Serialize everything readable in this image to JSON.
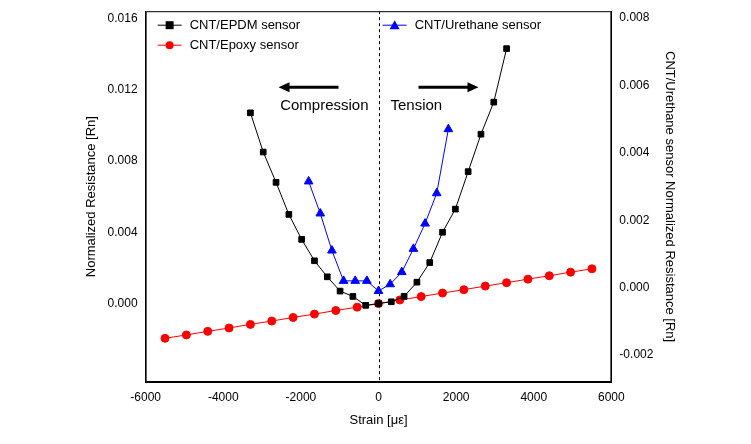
{
  "chart_data": {
    "type": "scatter",
    "xlabel": "Strain [με]",
    "ylabel": "Normalized Resistance [Rn]",
    "y2label": "CNT/Urethane sensor Normalized Resistance [Rn]",
    "annotations": [
      "Compression",
      "Tension"
    ],
    "xlim": [
      -6000,
      6000
    ],
    "xticks": [
      -6000,
      -4000,
      -2000,
      0,
      2000,
      4000,
      6000
    ],
    "ylim": [
      -0.0044,
      0.0164
    ],
    "yticks": [
      {
        "value": 0,
        "label": "0.000"
      },
      {
        "value": 0.004,
        "label": "0.004"
      },
      {
        "value": 0.008,
        "label": "0.008"
      },
      {
        "value": 0.012,
        "label": "0.012"
      },
      {
        "value": 0.016,
        "label": "0.016"
      }
    ],
    "y2lim": [
      -0.0028,
      0.0082
    ],
    "y2ticks": [
      {
        "value": -0.002,
        "label": "-0.002"
      },
      {
        "value": 0,
        "label": "0.000"
      },
      {
        "value": 0.002,
        "label": "0.002"
      },
      {
        "value": 0.004,
        "label": "0.004"
      },
      {
        "value": 0.006,
        "label": "0.006"
      },
      {
        "value": 0.008,
        "label": "0.008"
      }
    ],
    "grid": false,
    "legend": "upper left",
    "series": [
      {
        "name": "CNT/EPDM sensor",
        "color": "#000000",
        "marker": "square",
        "line_style": "solid",
        "x": [
          -3300,
          -2970,
          -2640,
          -2310,
          -1980,
          -1650,
          -1320,
          -990,
          -660,
          -330,
          0,
          330,
          660,
          990,
          1320,
          1650,
          1980,
          2310,
          2640,
          2970,
          3300
        ],
        "values": [
          0.0107,
          0.0085,
          0.0068,
          0.005,
          0.0036,
          0.0024,
          0.0015,
          0.0007,
          0.0004,
          -0.0001,
          0.0,
          0.0001,
          0.0004,
          0.0012,
          0.0023,
          0.004,
          0.0053,
          0.0074,
          0.0095,
          0.0113,
          0.0143
        ]
      },
      {
        "name": "CNT/Epoxy sensor",
        "color": "#ff0000",
        "marker": "circle",
        "line_style": "solid",
        "x": [
          -5500,
          -4950,
          -4400,
          -3850,
          -3300,
          -2750,
          -2200,
          -1650,
          -1100,
          -550,
          0,
          550,
          1100,
          1650,
          2200,
          2750,
          3300,
          3850,
          4400,
          4950,
          5500
        ],
        "values": [
          -0.00195,
          -0.00176,
          -0.00156,
          -0.00137,
          -0.00117,
          -0.00098,
          -0.00078,
          -0.00059,
          -0.00039,
          -0.0002,
          0.0,
          0.0002,
          0.00039,
          0.00059,
          0.00078,
          0.00098,
          0.00117,
          0.00137,
          0.00156,
          0.00176,
          0.00195
        ]
      },
      {
        "name": "CNT/Urethane sensor",
        "color": "#0000ff",
        "marker": "triangle",
        "line_style": "solid",
        "axis": "y2",
        "x": [
          -1800,
          -1500,
          -1200,
          -900,
          -600,
          -300,
          0,
          300,
          600,
          900,
          1200,
          1500,
          1800
        ],
        "values": [
          0.00315,
          0.0022,
          0.0011,
          0.0002,
          0.0002,
          0.0002,
          -0.0001,
          0.0001,
          0.00046,
          0.00115,
          0.0019,
          0.0028,
          0.0047
        ]
      }
    ]
  }
}
